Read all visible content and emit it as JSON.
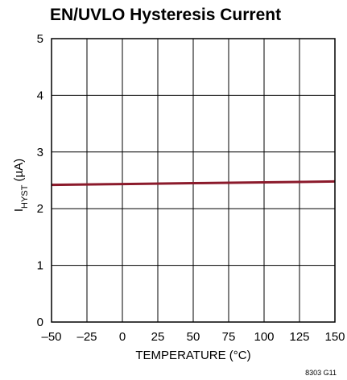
{
  "chart_data": {
    "type": "line",
    "title": "EN/UVLO Hysteresis Current",
    "xlabel": "TEMPERATURE (°C)",
    "ylabel_main": "I",
    "ylabel_sub": "HYST",
    "ylabel_tail": " (µA)",
    "xlim": [
      -50,
      150
    ],
    "ylim": [
      0,
      5
    ],
    "x_ticks": [
      -50,
      -25,
      0,
      25,
      50,
      75,
      100,
      125,
      150
    ],
    "x_tick_labels": [
      "–50",
      "–25",
      "0",
      "25",
      "50",
      "75",
      "100",
      "125",
      "150"
    ],
    "y_ticks": [
      0,
      1,
      2,
      3,
      4,
      5
    ],
    "y_tick_labels": [
      "0",
      "1",
      "2",
      "3",
      "4",
      "5"
    ],
    "grid": true,
    "series": [
      {
        "x": [
          -50,
          0,
          50,
          100,
          150
        ],
        "y": [
          2.42,
          2.435,
          2.45,
          2.465,
          2.48
        ],
        "color": "#8b1a2b"
      }
    ],
    "footnote": "8303 G11"
  }
}
